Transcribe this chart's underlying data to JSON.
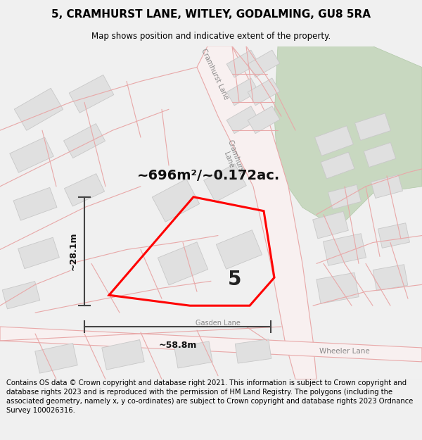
{
  "title": "5, CRAMHURST LANE, WITLEY, GODALMING, GU8 5RA",
  "subtitle": "Map shows position and indicative extent of the property.",
  "footer": "Contains OS data © Crown copyright and database right 2021. This information is subject to Crown copyright and database rights 2023 and is reproduced with the permission of HM Land Registry. The polygons (including the associated geometry, namely x, y co-ordinates) are subject to Crown copyright and database rights 2023 Ordnance Survey 100026316.",
  "area_label": "~696m²/~0.172ac.",
  "number_label": "5",
  "width_label": "~58.8m",
  "height_label": "~28.1m",
  "bg_color": "#f0f0f0",
  "map_bg": "#ffffff",
  "road_stroke": "#e8a8a8",
  "road_fill": "#f5f0f0",
  "building_fill": "#e0e0e0",
  "building_edge": "#c8c8c8",
  "green_fill": "#c8d8c0",
  "plot_edge": "#ff0000",
  "dim_color": "#444444",
  "title_fontsize": 11,
  "subtitle_fontsize": 8.5,
  "footer_fontsize": 7.2,
  "area_fontsize": 14,
  "number_fontsize": 20,
  "dim_fontsize": 9,
  "road_label_fontsize": 7,
  "road_label_color": "#888888"
}
